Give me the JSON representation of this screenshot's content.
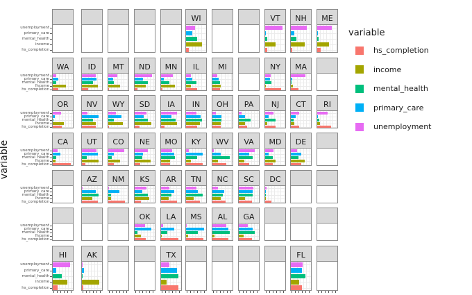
{
  "chart_data": {
    "type": "bar",
    "orientation": "horizontal",
    "title": "",
    "xlabel": "",
    "ylabel": "variable",
    "facet": "geographic grid of US states (facet_geo style)",
    "xlim": [
      0,
      1
    ],
    "grid": true,
    "legend_position": "right",
    "legend": {
      "title": "variable",
      "entries": [
        {
          "label": "hs_completion",
          "color": "#F8766D"
        },
        {
          "label": "income",
          "color": "#A3A500"
        },
        {
          "label": "mental_health",
          "color": "#00BF7D"
        },
        {
          "label": "primary_care",
          "color": "#00B0F6"
        },
        {
          "label": "unemployment",
          "color": "#E76BF3"
        }
      ]
    },
    "categories": [
      "hs_completion",
      "income",
      "mental_health",
      "primary_care",
      "unemployment"
    ],
    "y_tick_labels_top_to_bottom": [
      "unemployment",
      "primary_care",
      "mental_health",
      "income",
      "hs_completion"
    ],
    "grid_rows": 7,
    "grid_cols": 11,
    "panels": [
      {
        "state": "WI",
        "row": 0,
        "col": 5,
        "values": [
          0.15,
          0.85,
          0.6,
          0.35,
          0.5
        ]
      },
      {
        "state": "VT",
        "row": 0,
        "col": 8,
        "values": [
          0.1,
          0.55,
          0.1,
          0.05,
          0.92
        ]
      },
      {
        "state": "NH",
        "row": 0,
        "col": 9,
        "values": [
          0.08,
          0.75,
          0.3,
          0.2,
          0.85
        ]
      },
      {
        "state": "ME",
        "row": 0,
        "col": 10,
        "values": [
          0.2,
          0.65,
          0.08,
          0.05,
          0.8
        ]
      },
      {
        "state": "WA",
        "row": 1,
        "col": 0,
        "values": [
          0.3,
          0.7,
          0.2,
          0.3,
          0.2
        ]
      },
      {
        "state": "ID",
        "row": 1,
        "col": 1,
        "values": [
          0.35,
          0.85,
          0.6,
          0.8,
          0.75
        ]
      },
      {
        "state": "MT",
        "row": 1,
        "col": 2,
        "values": [
          0.05,
          0.65,
          0.3,
          0.25,
          0.5
        ]
      },
      {
        "state": "ND",
        "row": 1,
        "col": 3,
        "values": [
          0.15,
          0.6,
          0.7,
          0.45,
          0.95
        ]
      },
      {
        "state": "MN",
        "row": 1,
        "col": 4,
        "values": [
          0.08,
          0.75,
          0.45,
          0.15,
          0.65
        ]
      },
      {
        "state": "IL",
        "row": 1,
        "col": 5,
        "values": [
          0.6,
          0.25,
          0.55,
          0.35,
          0.25
        ]
      },
      {
        "state": "MI",
        "row": 1,
        "col": 6,
        "values": [
          0.4,
          0.45,
          0.4,
          0.35,
          0.25
        ]
      },
      {
        "state": "NY",
        "row": 1,
        "col": 8,
        "values": [
          0.85,
          0.05,
          0.35,
          0.25,
          0.3
        ]
      },
      {
        "state": "MA",
        "row": 1,
        "col": 9,
        "values": [
          0.4,
          0.1,
          0.05,
          0.08,
          0.8
        ]
      },
      {
        "state": "OR",
        "row": 2,
        "col": 0,
        "values": [
          0.5,
          0.6,
          0.05,
          0.1,
          0.45
        ]
      },
      {
        "state": "NV",
        "row": 2,
        "col": 1,
        "values": [
          0.75,
          0.75,
          0.6,
          0.9,
          0.3
        ]
      },
      {
        "state": "WY",
        "row": 2,
        "col": 2,
        "values": [
          0.05,
          0.8,
          0.3,
          0.7,
          0.4
        ]
      },
      {
        "state": "SD",
        "row": 2,
        "col": 3,
        "values": [
          0.25,
          0.9,
          0.7,
          0.5,
          0.65
        ]
      },
      {
        "state": "IA",
        "row": 2,
        "col": 4,
        "values": [
          0.2,
          0.85,
          0.8,
          0.55,
          0.85
        ]
      },
      {
        "state": "IN",
        "row": 2,
        "col": 5,
        "values": [
          0.6,
          0.75,
          0.85,
          0.8,
          0.55
        ]
      },
      {
        "state": "OH",
        "row": 2,
        "col": 6,
        "values": [
          0.45,
          0.45,
          0.5,
          0.5,
          0.2
        ]
      },
      {
        "state": "PA",
        "row": 2,
        "col": 7,
        "values": [
          0.45,
          0.35,
          0.65,
          0.35,
          0.15
        ]
      },
      {
        "state": "NJ",
        "row": 2,
        "col": 8,
        "values": [
          0.55,
          0.1,
          0.55,
          0.2,
          0.45
        ]
      },
      {
        "state": "CT",
        "row": 2,
        "col": 9,
        "values": [
          0.45,
          0.2,
          0.15,
          0.25,
          0.45
        ]
      },
      {
        "state": "RI",
        "row": 2,
        "col": 10,
        "values": [
          0.75,
          0.15,
          0.1,
          0.05,
          0.55
        ]
      },
      {
        "state": "CA",
        "row": 3,
        "col": 0,
        "values": [
          0.98,
          0.15,
          0.2,
          0.4,
          0.25
        ]
      },
      {
        "state": "UT",
        "row": 3,
        "col": 1,
        "values": [
          0.2,
          0.9,
          0.25,
          0.85,
          0.8
        ]
      },
      {
        "state": "CO",
        "row": 3,
        "col": 2,
        "values": [
          0.3,
          0.65,
          0.2,
          0.3,
          0.85
        ]
      },
      {
        "state": "NE",
        "row": 3,
        "col": 3,
        "values": [
          0.3,
          0.85,
          0.4,
          0.45,
          0.7
        ]
      },
      {
        "state": "MO",
        "row": 3,
        "col": 4,
        "values": [
          0.5,
          0.5,
          0.75,
          0.7,
          0.6
        ]
      },
      {
        "state": "KY",
        "row": 3,
        "col": 5,
        "values": [
          0.9,
          0.25,
          0.6,
          0.9,
          0.15
        ]
      },
      {
        "state": "WV",
        "row": 3,
        "col": 6,
        "values": [
          0.75,
          0.3,
          0.95,
          0.45,
          0.08
        ]
      },
      {
        "state": "VA",
        "row": 3,
        "col": 7,
        "values": [
          0.55,
          0.3,
          0.75,
          0.55,
          0.85
        ]
      },
      {
        "state": "MD",
        "row": 3,
        "col": 8,
        "values": [
          0.4,
          0.55,
          0.4,
          0.2,
          0.45
        ]
      },
      {
        "state": "DE",
        "row": 3,
        "col": 9,
        "values": [
          0.55,
          0.75,
          0.4,
          0.55,
          0.35
        ]
      },
      {
        "state": "AZ",
        "row": 4,
        "col": 1,
        "values": [
          0.85,
          0.55,
          0.9,
          0.75,
          0.05
        ]
      },
      {
        "state": "NM",
        "row": 4,
        "col": 2,
        "values": [
          0.9,
          0.15,
          0.15,
          0.6,
          0.05
        ]
      },
      {
        "state": "KS",
        "row": 4,
        "col": 3,
        "values": [
          0.35,
          0.8,
          0.7,
          0.4,
          0.65
        ]
      },
      {
        "state": "AR",
        "row": 4,
        "col": 4,
        "values": [
          0.85,
          0.4,
          0.55,
          0.7,
          0.45
        ]
      },
      {
        "state": "TN",
        "row": 4,
        "col": 5,
        "values": [
          0.75,
          0.4,
          0.9,
          0.65,
          0.55
        ]
      },
      {
        "state": "NC",
        "row": 4,
        "col": 6,
        "values": [
          0.7,
          0.45,
          0.55,
          0.65,
          0.3
        ]
      },
      {
        "state": "SC",
        "row": 4,
        "col": 7,
        "values": [
          0.7,
          0.35,
          0.75,
          0.75,
          0.8
        ]
      },
      {
        "state": "DC",
        "row": 4,
        "col": 8,
        "values": [
          0.35,
          0.02,
          0.05,
          0.05,
          0.08
        ]
      },
      {
        "state": "OK",
        "row": 5,
        "col": 3,
        "values": [
          0.6,
          0.35,
          0.15,
          0.9,
          0.55
        ]
      },
      {
        "state": "LA",
        "row": 5,
        "col": 4,
        "values": [
          0.95,
          0.05,
          0.35,
          0.7,
          0.1
        ]
      },
      {
        "state": "MS",
        "row": 5,
        "col": 5,
        "values": [
          0.95,
          0.1,
          0.65,
          0.98,
          0.05
        ]
      },
      {
        "state": "AL",
        "row": 5,
        "col": 6,
        "values": [
          0.85,
          0.1,
          0.95,
          0.85,
          0.75
        ]
      },
      {
        "state": "GA",
        "row": 5,
        "col": 7,
        "values": [
          0.7,
          0.25,
          0.85,
          0.75,
          0.5
        ]
      },
      {
        "state": "HI",
        "row": 6,
        "col": 0,
        "values": [
          0.25,
          0.8,
          0.5,
          0.2,
          0.95
        ]
      },
      {
        "state": "AK",
        "row": 6,
        "col": 1,
        "values": [
          0.08,
          0.95,
          0.05,
          0.1,
          0.02
        ]
      },
      {
        "state": "TX",
        "row": 6,
        "col": 4,
        "values": [
          0.92,
          0.3,
          0.92,
          0.88,
          0.45
        ]
      },
      {
        "state": "FL",
        "row": 6,
        "col": 9,
        "values": [
          0.6,
          0.45,
          0.8,
          0.6,
          0.65
        ]
      }
    ]
  }
}
